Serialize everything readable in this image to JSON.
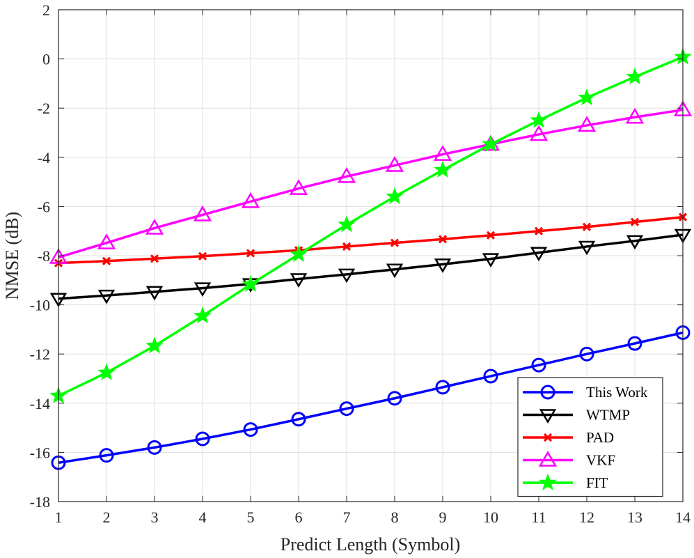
{
  "chart_data": {
    "type": "line",
    "title": "",
    "xlabel": "Predict Length (Symbol)",
    "ylabel": "NMSE (dB)",
    "xlim": [
      1,
      14
    ],
    "ylim": [
      -18,
      2
    ],
    "xticks": [
      1,
      2,
      3,
      4,
      5,
      6,
      7,
      8,
      9,
      10,
      11,
      12,
      13,
      14
    ],
    "yticks": [
      -18,
      -16,
      -14,
      -12,
      -10,
      -8,
      -6,
      -4,
      -2,
      0,
      2
    ],
    "grid": true,
    "legend_position": "bottom-right",
    "x": [
      1,
      2,
      3,
      4,
      5,
      6,
      7,
      8,
      9,
      10,
      11,
      12,
      13,
      14
    ],
    "series": [
      {
        "name": "This Work",
        "color": "#0000ff",
        "marker": "circle",
        "values": [
          -16.42,
          -16.12,
          -15.8,
          -15.45,
          -15.07,
          -14.65,
          -14.22,
          -13.8,
          -13.35,
          -12.9,
          -12.45,
          -12.0,
          -11.57,
          -11.13
        ]
      },
      {
        "name": "WTMP",
        "color": "#000000",
        "marker": "triangle-down",
        "values": [
          -9.75,
          -9.62,
          -9.47,
          -9.32,
          -9.15,
          -8.95,
          -8.76,
          -8.56,
          -8.35,
          -8.13,
          -7.88,
          -7.63,
          -7.4,
          -7.15
        ]
      },
      {
        "name": "PAD",
        "color": "#ff0000",
        "marker": "x",
        "values": [
          -8.3,
          -8.22,
          -8.12,
          -8.02,
          -7.9,
          -7.78,
          -7.63,
          -7.48,
          -7.33,
          -7.17,
          -7.0,
          -6.83,
          -6.63,
          -6.43
        ]
      },
      {
        "name": "VKF",
        "color": "#ff00ff",
        "marker": "triangle-up",
        "values": [
          -8.07,
          -7.48,
          -6.88,
          -6.34,
          -5.8,
          -5.27,
          -4.78,
          -4.33,
          -3.88,
          -3.47,
          -3.07,
          -2.7,
          -2.37,
          -2.07
        ]
      },
      {
        "name": "FIT",
        "color": "#00ff00",
        "marker": "star",
        "values": [
          -13.7,
          -12.76,
          -11.67,
          -10.45,
          -9.17,
          -7.95,
          -6.74,
          -5.6,
          -4.52,
          -3.47,
          -2.5,
          -1.58,
          -0.73,
          0.08
        ]
      }
    ]
  }
}
